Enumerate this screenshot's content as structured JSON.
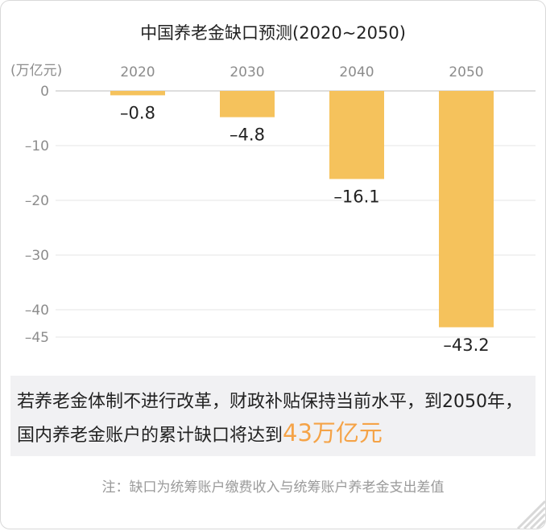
{
  "chart_data": {
    "type": "bar",
    "title": "中国养老金缺口预测(2020~2050)",
    "ylabel": "(万亿元)",
    "categories": [
      "2020",
      "2030",
      "2040",
      "2050"
    ],
    "values": [
      -0.8,
      -4.8,
      -16.1,
      -43.2
    ],
    "value_labels": [
      "–0.8",
      "–4.8",
      "–16.1",
      "–43.2"
    ],
    "yticks": [
      0,
      -10,
      -20,
      -30,
      -40,
      -45
    ],
    "ytick_labels": [
      "0",
      "–10",
      "–20",
      "–30",
      "–40",
      "–45"
    ],
    "ylim": [
      -45,
      0
    ],
    "grid": true,
    "bar_color": "#f5c25c"
  },
  "note": {
    "text": "若养老金体制不进行改革，财政补贴保持当前水平，到2050年，国内养老金账户的累计缺口将达到",
    "highlight": "43万亿元",
    "highlight_color": "#f5a347"
  },
  "footnote": "注：缺口为统筹账户缴费收入与统筹账户养老金支出差值"
}
